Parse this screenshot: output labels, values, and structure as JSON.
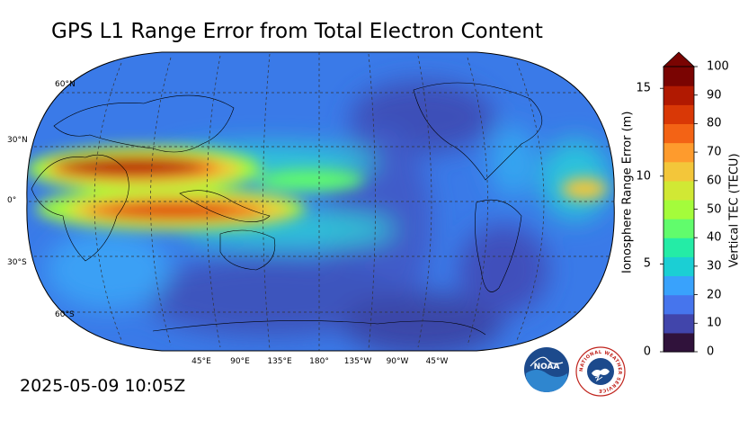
{
  "title": "GPS L1 Range Error from Total Electron Content",
  "timestamp": "2025-05-09 10:05Z",
  "map": {
    "projection": "robinson",
    "central_longitude": 180,
    "lat_labels": [
      "60°N",
      "30°N",
      "0°",
      "30°S",
      "60°S"
    ],
    "lon_labels": [
      "45°E",
      "90°E",
      "135°E",
      "180°",
      "135°W",
      "90°W",
      "45°W"
    ],
    "gridlines": true,
    "coastlines": true
  },
  "colorbar": {
    "left_axis_label": "Ionosphere Range Error (m)",
    "right_axis_label": "Vertical TEC (TECU)",
    "left_ticks": [
      "0",
      "5",
      "10",
      "15"
    ],
    "right_ticks": [
      "0",
      "10",
      "20",
      "30",
      "40",
      "50",
      "60",
      "70",
      "80",
      "90",
      "100"
    ],
    "extend": "max",
    "colormap": "turbo",
    "colors": [
      "#30123b",
      "#4145ab",
      "#4675ed",
      "#39a2fc",
      "#1bcfd4",
      "#24eca6",
      "#61fc6c",
      "#a4fc3b",
      "#d1e834",
      "#f3c63a",
      "#fe9b2d",
      "#f36315",
      "#d93806",
      "#b11901",
      "#7a0402"
    ]
  },
  "logos": [
    {
      "icon": "noaa-logo-icon",
      "text": "NOAA"
    },
    {
      "icon": "nws-logo-icon",
      "text": "NATIONAL WEATHER SERVICE"
    }
  ]
}
